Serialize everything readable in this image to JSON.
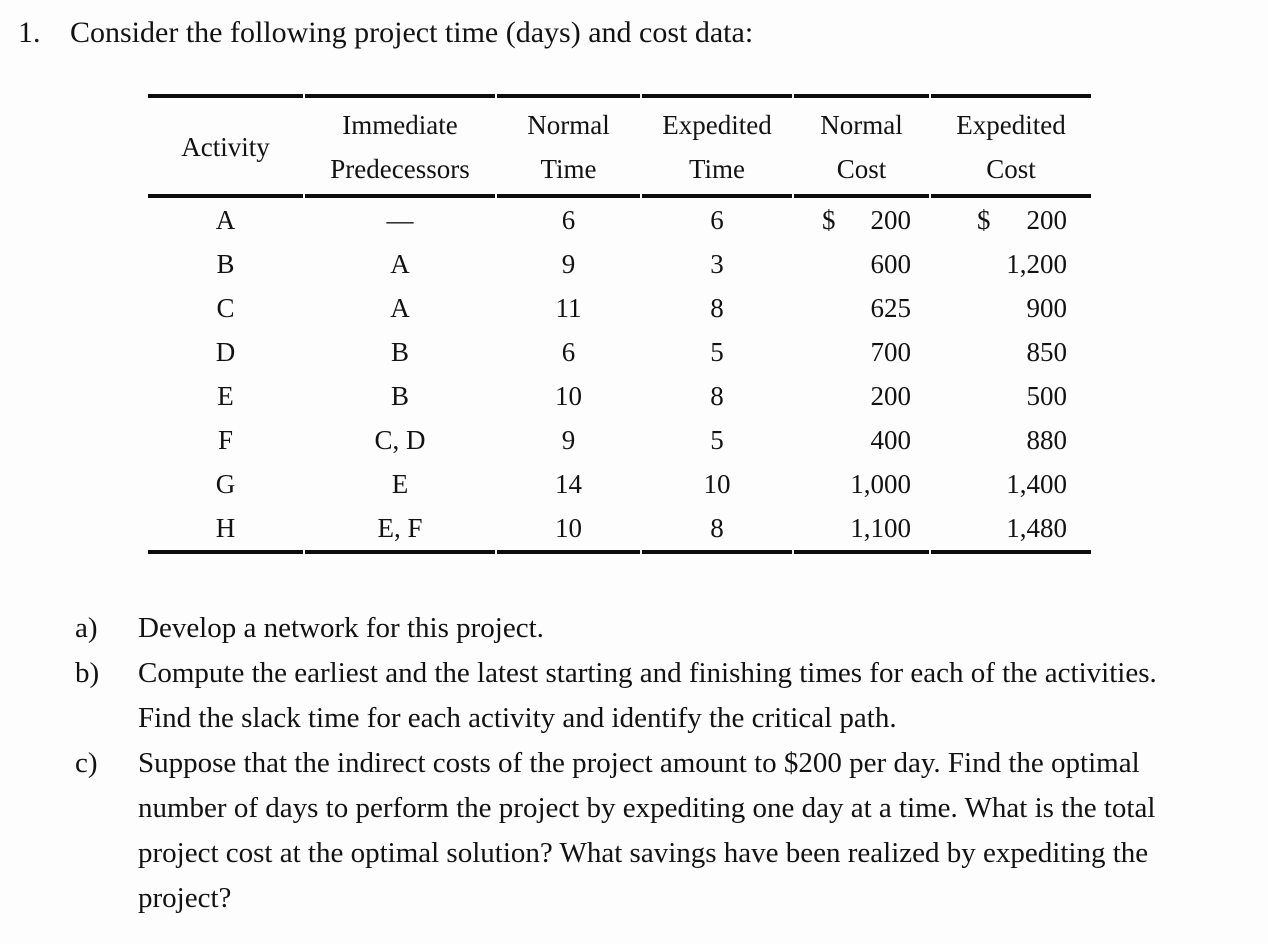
{
  "title": {
    "number": "1.",
    "text": "Consider the following project time (days) and cost data:"
  },
  "table": {
    "columns": [
      {
        "line1": "",
        "line2": "Activity"
      },
      {
        "line1": "Immediate",
        "line2": "Predecessors"
      },
      {
        "line1": "Normal",
        "line2": "Time"
      },
      {
        "line1": "Expedited",
        "line2": "Time"
      },
      {
        "line1": "Normal",
        "line2": "Cost"
      },
      {
        "line1": "Expedited",
        "line2": "Cost"
      }
    ],
    "rows": [
      {
        "activity": "A",
        "predecessors": "—",
        "normal_time": "6",
        "expedited_time": "6",
        "normal_cost_prefix": "$",
        "normal_cost": "200",
        "expedited_cost_prefix": "$",
        "expedited_cost": "200"
      },
      {
        "activity": "B",
        "predecessors": "A",
        "normal_time": "9",
        "expedited_time": "3",
        "normal_cost_prefix": "",
        "normal_cost": "600",
        "expedited_cost_prefix": "",
        "expedited_cost": "1,200"
      },
      {
        "activity": "C",
        "predecessors": "A",
        "normal_time": "11",
        "expedited_time": "8",
        "normal_cost_prefix": "",
        "normal_cost": "625",
        "expedited_cost_prefix": "",
        "expedited_cost": "900"
      },
      {
        "activity": "D",
        "predecessors": "B",
        "normal_time": "6",
        "expedited_time": "5",
        "normal_cost_prefix": "",
        "normal_cost": "700",
        "expedited_cost_prefix": "",
        "expedited_cost": "850"
      },
      {
        "activity": "E",
        "predecessors": "B",
        "normal_time": "10",
        "expedited_time": "8",
        "normal_cost_prefix": "",
        "normal_cost": "200",
        "expedited_cost_prefix": "",
        "expedited_cost": "500"
      },
      {
        "activity": "F",
        "predecessors": "C, D",
        "normal_time": "9",
        "expedited_time": "5",
        "normal_cost_prefix": "",
        "normal_cost": "400",
        "expedited_cost_prefix": "",
        "expedited_cost": "880"
      },
      {
        "activity": "G",
        "predecessors": "E",
        "normal_time": "14",
        "expedited_time": "10",
        "normal_cost_prefix": "",
        "normal_cost": "1,000",
        "expedited_cost_prefix": "",
        "expedited_cost": "1,400"
      },
      {
        "activity": "H",
        "predecessors": "E, F",
        "normal_time": "10",
        "expedited_time": "8",
        "normal_cost_prefix": "",
        "normal_cost": "1,100",
        "expedited_cost_prefix": "",
        "expedited_cost": "1,480"
      }
    ]
  },
  "questions": [
    {
      "label": "a)",
      "text": "Develop a network for this project."
    },
    {
      "label": "b)",
      "text": "Compute the earliest and the latest starting and finishing times for each of the activities. Find the slack time for each activity and identify the critical path."
    },
    {
      "label": "c)",
      "text": "Suppose that the indirect costs of the project amount to $200 per day. Find the optimal number of days to perform the project by expediting one day at a time. What is the total project cost at the optimal solution? What savings have been realized by expediting the project?"
    }
  ]
}
